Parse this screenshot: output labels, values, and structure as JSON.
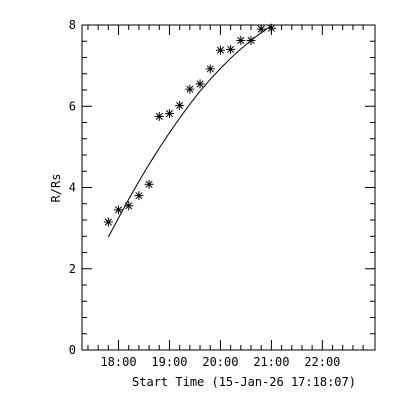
{
  "chart_data": {
    "type": "scatter",
    "xlabel": "Start Time (15-Jan-26 17:18:07)",
    "ylabel": "R/Rs",
    "xlim": [
      "17:17",
      "23:02"
    ],
    "ylim": [
      0,
      8
    ],
    "x_ticks": [
      "18:00",
      "19:00",
      "20:00",
      "21:00",
      "22:00"
    ],
    "y_ticks": [
      "0",
      "2",
      "4",
      "6",
      "8"
    ],
    "grid": false,
    "series": [
      {
        "marker": "asterisk",
        "x": [
          "17:48",
          "18:00",
          "18:12",
          "18:24",
          "18:36",
          "18:48",
          "19:00",
          "19:12",
          "19:24",
          "19:36",
          "19:48",
          "20:00",
          "20:12",
          "20:24",
          "20:36",
          "20:48",
          "21:00"
        ],
        "y": [
          3.15,
          3.45,
          3.55,
          3.8,
          4.08,
          5.75,
          5.82,
          6.02,
          6.42,
          6.55,
          6.92,
          7.38,
          7.4,
          7.62,
          7.62,
          7.9,
          7.92
        ]
      },
      {
        "marker": "line",
        "x": [
          "17:48",
          "18:00",
          "18:12",
          "18:24",
          "18:36",
          "18:48",
          "19:00",
          "19:12",
          "19:24",
          "19:36",
          "19:48",
          "20:00",
          "20:12",
          "20:24",
          "20:36",
          "20:48",
          "21:00"
        ],
        "y": [
          2.78,
          3.25,
          3.71,
          4.15,
          4.57,
          4.97,
          5.35,
          5.71,
          6.05,
          6.37,
          6.66,
          6.93,
          7.18,
          7.41,
          7.62,
          7.81,
          7.98
        ]
      }
    ]
  }
}
